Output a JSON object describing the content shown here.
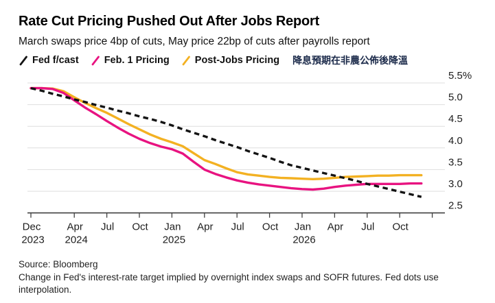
{
  "header": {
    "title": "Rate Cut Pricing Pushed Out After Jobs Report",
    "subtitle": "March swaps price 4bp of cuts, May price 22bp of cuts after payrolls report"
  },
  "legend": {
    "items": [
      {
        "label": "Fed f/cast",
        "color": "#141414"
      },
      {
        "label": "Feb. 1 Pricing",
        "color": "#e81380"
      },
      {
        "label": "Post-Jobs Pricing",
        "color": "#f3b122"
      }
    ],
    "annotation": "降息預期在非農公佈後降溫"
  },
  "chart_data": {
    "type": "line",
    "title": "Rate Cut Pricing Pushed Out After Jobs Report",
    "x_unit": "months since Dec 2023",
    "x": [
      0,
      1,
      2,
      3,
      4,
      5,
      6,
      7,
      8,
      9,
      10,
      11,
      12,
      13,
      14,
      15,
      16,
      17,
      18,
      19,
      20,
      21,
      22,
      23,
      24,
      25,
      26,
      27,
      28,
      29,
      30,
      31,
      32,
      33,
      34,
      35,
      36
    ],
    "series": [
      {
        "name": "Fed f/cast",
        "style": "dashed",
        "color": "#141414",
        "values": [
          5.38,
          5.32,
          5.25,
          5.19,
          5.12,
          5.06,
          4.99,
          4.93,
          4.86,
          4.8,
          4.73,
          4.67,
          4.6,
          4.52,
          4.43,
          4.35,
          4.27,
          4.18,
          4.1,
          4.02,
          3.93,
          3.85,
          3.77,
          3.68,
          3.6,
          3.54,
          3.48,
          3.42,
          3.36,
          3.3,
          3.24,
          3.17,
          3.11,
          3.05,
          2.99,
          2.93,
          2.87
        ]
      },
      {
        "name": "Feb. 1 Pricing",
        "style": "solid",
        "color": "#e81380",
        "values": [
          5.38,
          5.38,
          5.36,
          5.27,
          5.1,
          4.93,
          4.78,
          4.62,
          4.47,
          4.33,
          4.21,
          4.11,
          4.03,
          3.97,
          3.87,
          3.68,
          3.5,
          3.4,
          3.32,
          3.25,
          3.2,
          3.16,
          3.13,
          3.1,
          3.07,
          3.05,
          3.04,
          3.06,
          3.1,
          3.13,
          3.15,
          3.17,
          3.17,
          3.17,
          3.17,
          3.18,
          3.18
        ]
      },
      {
        "name": "Post-Jobs Pricing",
        "style": "solid",
        "color": "#f3b122",
        "values": [
          5.38,
          5.38,
          5.37,
          5.31,
          5.17,
          5.04,
          4.92,
          4.81,
          4.68,
          4.55,
          4.43,
          4.31,
          4.21,
          4.13,
          4.04,
          3.88,
          3.72,
          3.63,
          3.53,
          3.44,
          3.39,
          3.36,
          3.33,
          3.31,
          3.3,
          3.29,
          3.28,
          3.29,
          3.31,
          3.33,
          3.34,
          3.35,
          3.36,
          3.36,
          3.37,
          3.37,
          3.37
        ]
      }
    ],
    "x_ticks": [
      {
        "month": 0,
        "label": "Dec",
        "year": "2023"
      },
      {
        "month": 4,
        "label": "Apr",
        "year": "2024"
      },
      {
        "month": 7,
        "label": "Jul",
        "year": ""
      },
      {
        "month": 10,
        "label": "Oct",
        "year": ""
      },
      {
        "month": 13,
        "label": "Jan",
        "year": "2025"
      },
      {
        "month": 16,
        "label": "Apr",
        "year": ""
      },
      {
        "month": 19,
        "label": "Jul",
        "year": ""
      },
      {
        "month": 22,
        "label": "Oct",
        "year": ""
      },
      {
        "month": 25,
        "label": "Jan",
        "year": "2026"
      },
      {
        "month": 28,
        "label": "Apr",
        "year": ""
      },
      {
        "month": 31,
        "label": "Jul",
        "year": ""
      },
      {
        "month": 34,
        "label": "Oct",
        "year": ""
      },
      {
        "month": 37,
        "label": "",
        "year": ""
      }
    ],
    "y_ticks": [
      {
        "value": 5.5,
        "label": "5.5%"
      },
      {
        "value": 5.0,
        "label": "5.0"
      },
      {
        "value": 4.5,
        "label": "4.5"
      },
      {
        "value": 4.0,
        "label": "4.0"
      },
      {
        "value": 3.5,
        "label": "3.5"
      },
      {
        "value": 3.0,
        "label": "3.0"
      },
      {
        "value": 2.5,
        "label": "2.5"
      }
    ],
    "ylim": [
      2.5,
      5.5
    ],
    "grid": "horizontal",
    "legend_position": "top"
  },
  "colors": {
    "grid": "#dedede",
    "axis": "#3f3f3f",
    "tick_label": "#1d1d1d",
    "annotation": "#1b2a4a"
  },
  "footer": {
    "source": "Source: Bloomberg",
    "note": "Change in Fed's interest-rate target implied by overnight index swaps and SOFR futures. Fed dots use interpolation."
  }
}
